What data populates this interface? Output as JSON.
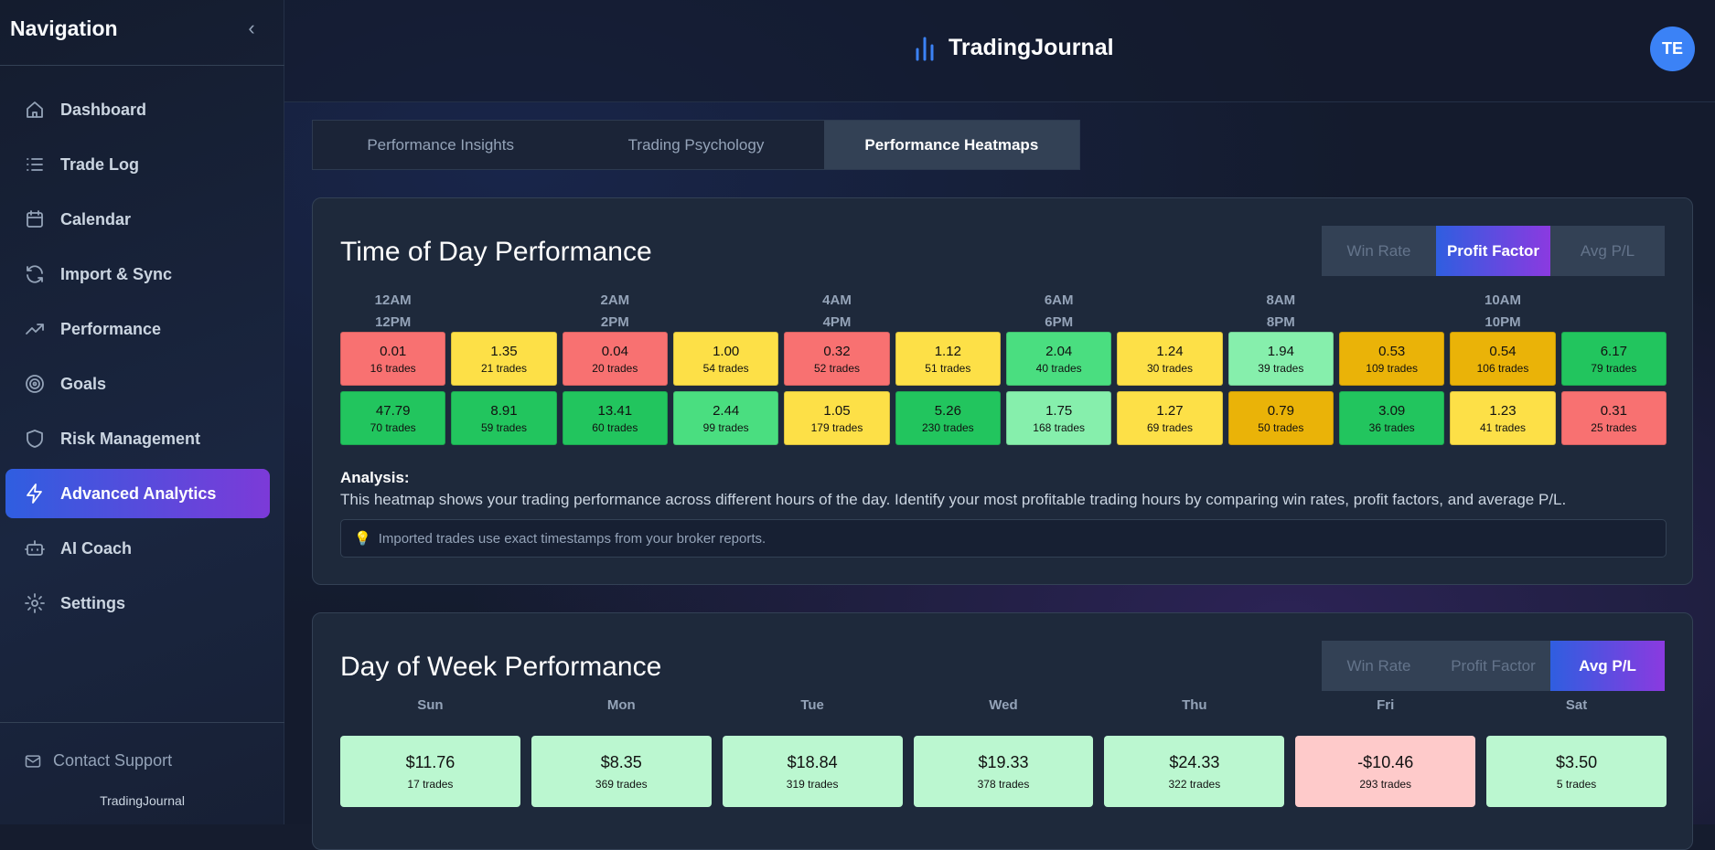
{
  "sidebar": {
    "title": "Navigation",
    "items": [
      {
        "label": "Dashboard",
        "icon": "home-icon"
      },
      {
        "label": "Trade Log",
        "icon": "list-icon"
      },
      {
        "label": "Calendar",
        "icon": "calendar-icon"
      },
      {
        "label": "Import & Sync",
        "icon": "refresh-icon"
      },
      {
        "label": "Performance",
        "icon": "trending-up-icon"
      },
      {
        "label": "Goals",
        "icon": "target-icon"
      },
      {
        "label": "Risk Management",
        "icon": "shield-icon"
      },
      {
        "label": "Advanced Analytics",
        "icon": "lightning-icon",
        "active": true
      },
      {
        "label": "AI Coach",
        "icon": "bot-icon"
      },
      {
        "label": "Settings",
        "icon": "gear-icon"
      }
    ],
    "contact": "Contact Support",
    "footer": "TradingJournal"
  },
  "header": {
    "brand": "TradingJournal",
    "avatar": "TE"
  },
  "tabs": [
    "Performance Insights",
    "Trading Psychology",
    "Performance Heatmaps"
  ],
  "time_card": {
    "title": "Time of Day Performance",
    "toggle": [
      "Win Rate",
      "Profit Factor",
      "Avg P/L"
    ],
    "active_toggle": 1,
    "labels_am": [
      "12AM",
      "2AM",
      "4AM",
      "6AM",
      "8AM",
      "10AM"
    ],
    "labels_pm": [
      "12PM",
      "2PM",
      "4PM",
      "6PM",
      "8PM",
      "10PM"
    ],
    "rows": [
      [
        {
          "v": "0.01",
          "t": "16 trades",
          "c": "#f87171"
        },
        {
          "v": "1.35",
          "t": "21 trades",
          "c": "#fde047"
        },
        {
          "v": "0.04",
          "t": "20 trades",
          "c": "#f87171"
        },
        {
          "v": "1.00",
          "t": "54 trades",
          "c": "#fde047"
        },
        {
          "v": "0.32",
          "t": "52 trades",
          "c": "#f87171"
        },
        {
          "v": "1.12",
          "t": "51 trades",
          "c": "#fde047"
        },
        {
          "v": "2.04",
          "t": "40 trades",
          "c": "#4ade80"
        },
        {
          "v": "1.24",
          "t": "30 trades",
          "c": "#fde047"
        },
        {
          "v": "1.94",
          "t": "39 trades",
          "c": "#86efac"
        },
        {
          "v": "0.53",
          "t": "109 trades",
          "c": "#eab308"
        },
        {
          "v": "0.54",
          "t": "106 trades",
          "c": "#eab308"
        },
        {
          "v": "6.17",
          "t": "79 trades",
          "c": "#22c55e"
        }
      ],
      [
        {
          "v": "47.79",
          "t": "70 trades",
          "c": "#22c55e"
        },
        {
          "v": "8.91",
          "t": "59 trades",
          "c": "#22c55e"
        },
        {
          "v": "13.41",
          "t": "60 trades",
          "c": "#22c55e"
        },
        {
          "v": "2.44",
          "t": "99 trades",
          "c": "#4ade80"
        },
        {
          "v": "1.05",
          "t": "179 trades",
          "c": "#fde047"
        },
        {
          "v": "5.26",
          "t": "230 trades",
          "c": "#22c55e"
        },
        {
          "v": "1.75",
          "t": "168 trades",
          "c": "#86efac"
        },
        {
          "v": "1.27",
          "t": "69 trades",
          "c": "#fde047"
        },
        {
          "v": "0.79",
          "t": "50 trades",
          "c": "#eab308"
        },
        {
          "v": "3.09",
          "t": "36 trades",
          "c": "#22c55e"
        },
        {
          "v": "1.23",
          "t": "41 trades",
          "c": "#fde047"
        },
        {
          "v": "0.31",
          "t": "25 trades",
          "c": "#f87171"
        }
      ]
    ],
    "analysis_heading": "Analysis:",
    "analysis_text": "This heatmap shows your trading performance across different hours of the day. Identify your most profitable trading hours by comparing win rates, profit factors, and average P/L.",
    "note": "Imported trades use exact timestamps from your broker reports."
  },
  "day_card": {
    "title": "Day of Week Performance",
    "toggle": [
      "Win Rate",
      "Profit Factor",
      "Avg P/L"
    ],
    "active_toggle": 2,
    "days": [
      {
        "d": "Sun",
        "v": "$11.76",
        "t": "17 trades",
        "c": "#bbf7d0"
      },
      {
        "d": "Mon",
        "v": "$8.35",
        "t": "369 trades",
        "c": "#bbf7d0"
      },
      {
        "d": "Tue",
        "v": "$18.84",
        "t": "319 trades",
        "c": "#bbf7d0"
      },
      {
        "d": "Wed",
        "v": "$19.33",
        "t": "378 trades",
        "c": "#bbf7d0"
      },
      {
        "d": "Thu",
        "v": "$24.33",
        "t": "322 trades",
        "c": "#bbf7d0"
      },
      {
        "d": "Fri",
        "v": "-$10.46",
        "t": "293 trades",
        "c": "#fecaca"
      },
      {
        "d": "Sat",
        "v": "$3.50",
        "t": "5 trades",
        "c": "#bbf7d0"
      }
    ]
  }
}
